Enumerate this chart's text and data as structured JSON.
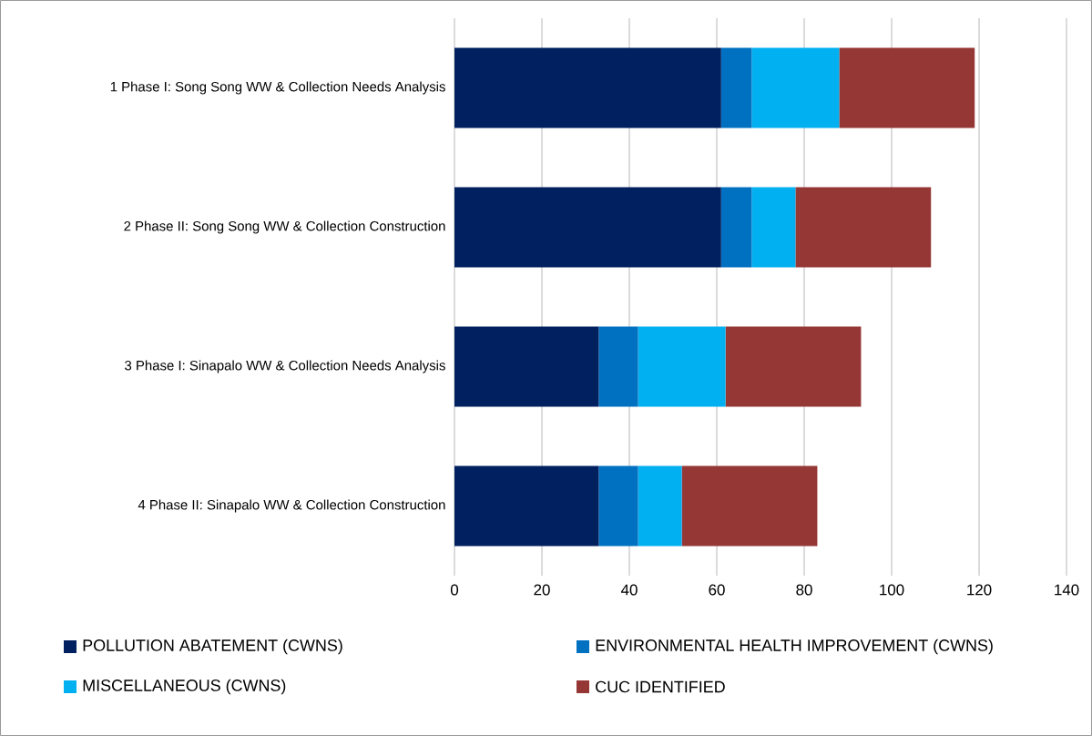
{
  "chart_data": {
    "type": "bar",
    "orientation": "horizontal",
    "stacked": true,
    "categories": [
      "1 Phase I: Song Song WW & Collection Needs Analysis",
      "2 Phase II: Song Song WW & Collection Construction",
      "3 Phase I: Sinapalo WW & Collection Needs Analysis",
      "4 Phase II: Sinapalo WW & Collection Construction"
    ],
    "series": [
      {
        "name": "POLLUTION ABATEMENT (CWNS)",
        "color": "#002060",
        "values": [
          61,
          61,
          33,
          33
        ]
      },
      {
        "name": "ENVIRONMENTAL HEALTH IMPROVEMENT (CWNS)",
        "color": "#0070c0",
        "values": [
          7,
          7,
          9,
          9
        ]
      },
      {
        "name": "MISCELLANEOUS (CWNS)",
        "color": "#00b0f0",
        "values": [
          20,
          10,
          20,
          10
        ]
      },
      {
        "name": "CUC IDENTIFIED",
        "color": "#953735",
        "values": [
          31,
          31,
          31,
          31
        ]
      }
    ],
    "xlim": [
      0,
      140
    ],
    "xticks": [
      0,
      20,
      40,
      60,
      80,
      100,
      120,
      140
    ],
    "grid": "x",
    "legend": "bottom"
  }
}
